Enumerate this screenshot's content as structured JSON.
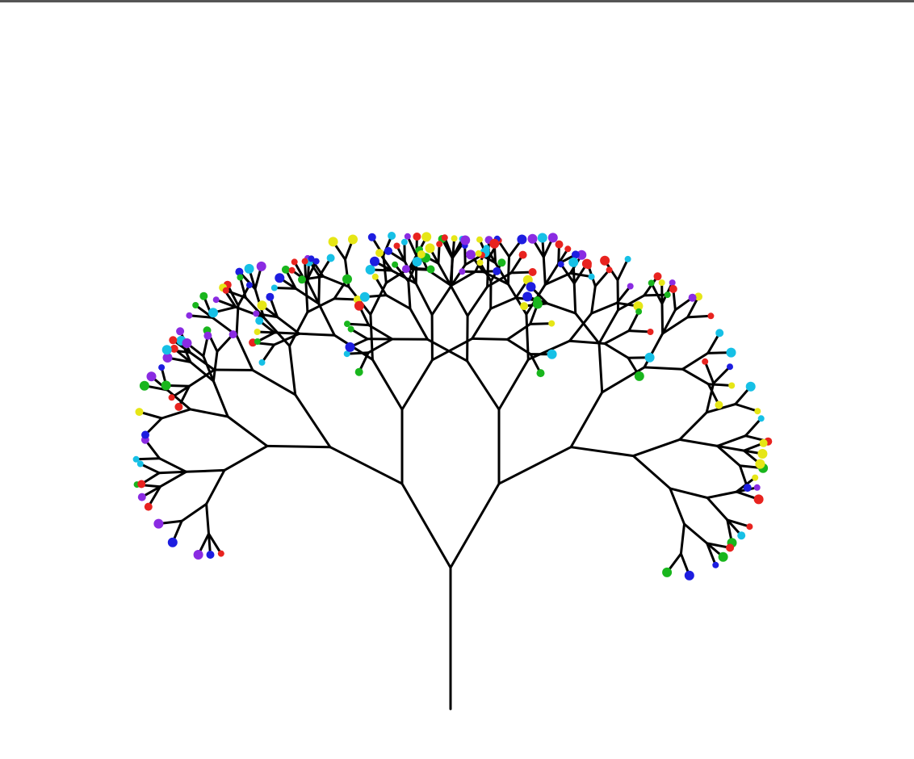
{
  "scene": {
    "subject": "fractal tree",
    "background_color": "#ffffff",
    "branch_color": "#000000",
    "window_border_color": "#555555"
  },
  "tree": {
    "depth": 7,
    "branching": 2,
    "branch_shrink_ratio": 0.78,
    "spread_degrees": 30
  },
  "leaves": {
    "shape": "circle",
    "palette": [
      "#e8231f",
      "#1d1de0",
      "#19b61d",
      "#8a2be2",
      "#16c0e6",
      "#e6e616"
    ]
  }
}
